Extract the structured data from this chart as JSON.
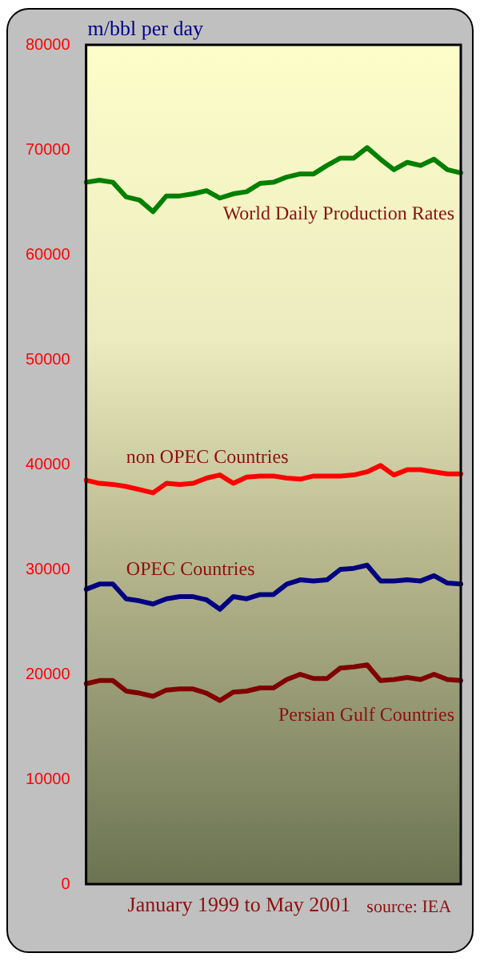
{
  "chart_data": {
    "type": "line",
    "title": "m/bbl per day",
    "xlabel": "January 1999 to May 2001",
    "annotations": [
      "source: IEA"
    ],
    "categories": [
      null,
      null,
      null,
      null,
      null,
      null,
      null,
      null,
      null,
      null,
      null,
      null,
      null,
      null,
      null,
      null,
      null,
      null,
      null,
      null,
      null,
      null,
      null,
      null,
      null,
      null,
      null,
      null,
      null
    ],
    "series": [
      {
        "name": "World Daily Production Rates",
        "color": "#008000",
        "values": [
          66900,
          67100,
          66900,
          65500,
          65200,
          64100,
          65600,
          65600,
          65800,
          66100,
          65400,
          65800,
          66000,
          66800,
          66900,
          67400,
          67700,
          67700,
          68500,
          69200,
          69200,
          70200,
          69100,
          68100,
          68800,
          68500,
          69100,
          68100,
          67800
        ]
      },
      {
        "name": "non OPEC Countries",
        "color": "#ff0000",
        "values": [
          38500,
          38200,
          38100,
          37900,
          37600,
          37300,
          38200,
          38100,
          38200,
          38700,
          39000,
          38200,
          38800,
          38900,
          38900,
          38700,
          38600,
          38900,
          38900,
          38900,
          39000,
          39300,
          39900,
          39000,
          39500,
          39500,
          39300,
          39100,
          39100
        ]
      },
      {
        "name": "OPEC Countries",
        "color": "#000080",
        "values": [
          28100,
          28600,
          28600,
          27200,
          27000,
          26700,
          27200,
          27400,
          27400,
          27100,
          26200,
          27400,
          27200,
          27600,
          27600,
          28600,
          29000,
          28900,
          29000,
          30000,
          30100,
          30400,
          28900,
          28900,
          29000,
          28900,
          29400,
          28700,
          28600
        ]
      },
      {
        "name": "Persian Gulf Countries",
        "color": "#800000",
        "values": [
          19100,
          19400,
          19400,
          18400,
          18200,
          17900,
          18500,
          18600,
          18600,
          18200,
          17500,
          18300,
          18400,
          18700,
          18700,
          19500,
          20000,
          19600,
          19600,
          20600,
          20700,
          20900,
          19400,
          19500,
          19700,
          19500,
          20000,
          19500,
          19400
        ]
      }
    ],
    "ylim": [
      0,
      80000
    ],
    "yticks": [
      0,
      10000,
      20000,
      30000,
      40000,
      50000,
      60000,
      70000,
      80000
    ],
    "grid": false,
    "legend": false,
    "tick_labels": "y",
    "marker": "none",
    "line_style": "solid"
  }
}
